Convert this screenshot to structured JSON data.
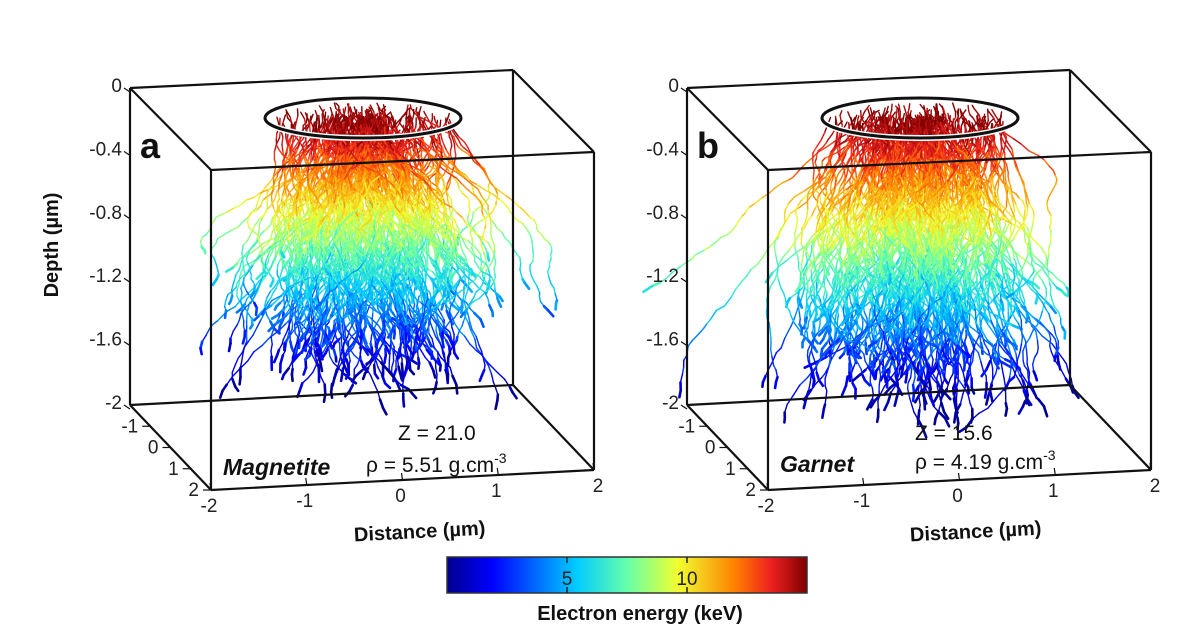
{
  "chart_data": {
    "type": "3d-trajectory",
    "panels": [
      {
        "label": "a",
        "material": "Magnetite",
        "z_text": "Z = 21.0",
        "rho_text": "ρ = 5.51 g.cm",
        "rho_exp": "-3",
        "max_depth_um": -1.75,
        "seed": 7
      },
      {
        "label": "b",
        "material": "Garnet",
        "z_text": "Z = 15.6",
        "rho_text": "ρ = 4.19 g.cm",
        "rho_exp": "-3",
        "max_depth_um": -1.9,
        "seed": 19
      }
    ],
    "zlabel": "Depth (µm)",
    "xlabel": "Distance (µm)",
    "z_ticks": [
      "0",
      "-0.4",
      "-0.8",
      "-1.2",
      "-1.6",
      "-2"
    ],
    "x_ticks": [
      "-2",
      "-1",
      "0",
      "1",
      "2"
    ],
    "y_ticks": [
      "-1",
      "0",
      "1",
      "2"
    ],
    "zlim": [
      -2,
      0
    ],
    "xlim": [
      -2,
      2
    ],
    "ylim": [
      -2,
      2
    ],
    "colorbar": {
      "label": "Electron energy (keV)",
      "ticks": [
        "5",
        "10"
      ],
      "range": [
        0,
        15
      ],
      "colormap": "jet"
    }
  }
}
